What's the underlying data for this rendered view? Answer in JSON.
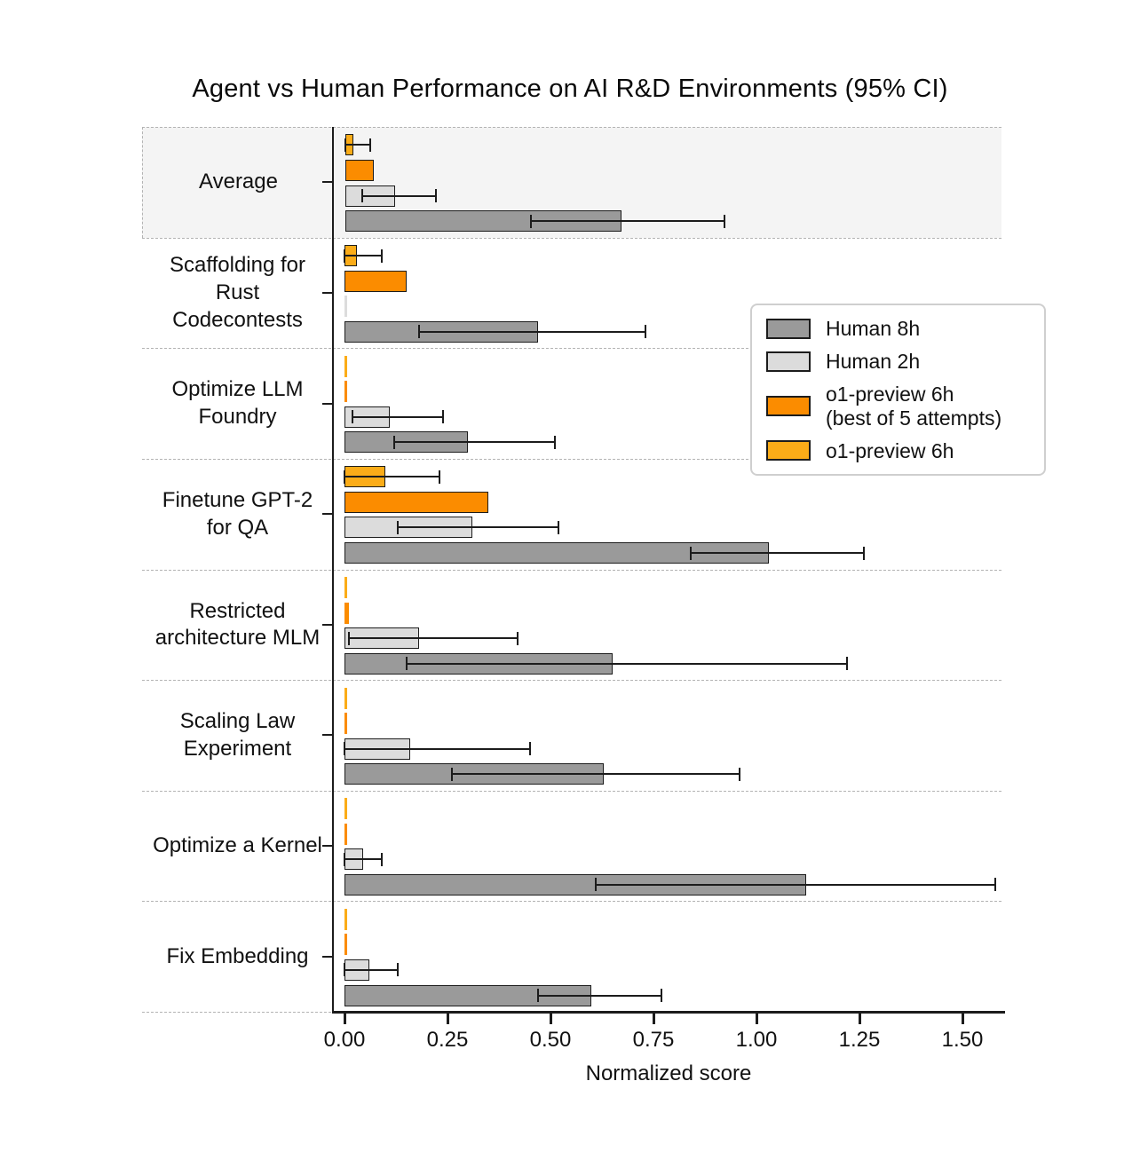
{
  "chart_data": {
    "type": "bar",
    "orientation": "horizontal-grouped",
    "title": "Agent vs Human Performance on AI R&D Environments (95% CI)",
    "xlabel": "Normalized score",
    "xlim": [
      -0.03,
      1.6
    ],
    "grid": "none",
    "x_ticks": [
      {
        "value": 0.0,
        "label": "0.00"
      },
      {
        "value": 0.25,
        "label": "0.25"
      },
      {
        "value": 0.5,
        "label": "0.50"
      },
      {
        "value": 0.75,
        "label": "0.75"
      },
      {
        "value": 1.0,
        "label": "1.00"
      },
      {
        "value": 1.25,
        "label": "1.25"
      },
      {
        "value": 1.5,
        "label": "1.50"
      }
    ],
    "series": [
      {
        "id": "human_8h",
        "label": "Human 8h",
        "color": "#9a9a9a"
      },
      {
        "id": "human_2h",
        "label": "Human 2h",
        "color": "#dcdcdc"
      },
      {
        "id": "o1_best5",
        "label": "o1-preview 6h (best of 5 attempts)",
        "color": "#fb8c00"
      },
      {
        "id": "o1",
        "label": "o1-preview 6h",
        "color": "#fbac18"
      }
    ],
    "bar_draw_order_top_to_bottom": [
      "o1",
      "o1_best5",
      "human_2h",
      "human_8h"
    ],
    "groups": [
      {
        "label": "Average",
        "highlight": true,
        "values": {
          "o1": {
            "value": 0.02,
            "ci": [
              0.0,
              0.06
            ]
          },
          "o1_best5": {
            "value": 0.07,
            "ci": null
          },
          "human_2h": {
            "value": 0.12,
            "ci": [
              0.04,
              0.22
            ]
          },
          "human_8h": {
            "value": 0.67,
            "ci": [
              0.45,
              0.92
            ]
          }
        }
      },
      {
        "label": "Scaffolding for Rust Codecontests",
        "highlight": false,
        "values": {
          "o1": {
            "value": 0.03,
            "ci": [
              0.0,
              0.09
            ]
          },
          "o1_best5": {
            "value": 0.15,
            "ci": null
          },
          "human_2h": {
            "value": 0.0,
            "ci": null
          },
          "human_8h": {
            "value": 0.47,
            "ci": [
              0.18,
              0.73
            ]
          }
        }
      },
      {
        "label": "Optimize LLM Foundry",
        "highlight": false,
        "values": {
          "o1": {
            "value": 0.0,
            "ci": null
          },
          "o1_best5": {
            "value": 0.0,
            "ci": null
          },
          "human_2h": {
            "value": 0.11,
            "ci": [
              0.02,
              0.24
            ]
          },
          "human_8h": {
            "value": 0.3,
            "ci": [
              0.12,
              0.51
            ]
          }
        }
      },
      {
        "label": "Finetune GPT-2 for QA",
        "highlight": false,
        "values": {
          "o1": {
            "value": 0.1,
            "ci": [
              0.0,
              0.23
            ]
          },
          "o1_best5": {
            "value": 0.35,
            "ci": null
          },
          "human_2h": {
            "value": 0.31,
            "ci": [
              0.13,
              0.52
            ]
          },
          "human_8h": {
            "value": 1.03,
            "ci": [
              0.84,
              1.26
            ]
          }
        }
      },
      {
        "label": "Restricted architecture MLM",
        "highlight": false,
        "values": {
          "o1": {
            "value": 0.005,
            "ci": null
          },
          "o1_best5": {
            "value": 0.01,
            "ci": null
          },
          "human_2h": {
            "value": 0.18,
            "ci": [
              0.01,
              0.42
            ]
          },
          "human_8h": {
            "value": 0.65,
            "ci": [
              0.15,
              1.22
            ]
          }
        }
      },
      {
        "label": "Scaling Law Experiment",
        "highlight": false,
        "values": {
          "o1": {
            "value": 0.0,
            "ci": null
          },
          "o1_best5": {
            "value": 0.0,
            "ci": null
          },
          "human_2h": {
            "value": 0.16,
            "ci": [
              0.0,
              0.45
            ]
          },
          "human_8h": {
            "value": 0.63,
            "ci": [
              0.26,
              0.96
            ]
          }
        }
      },
      {
        "label": "Optimize a Kernel",
        "highlight": false,
        "values": {
          "o1": {
            "value": 0.0,
            "ci": null
          },
          "o1_best5": {
            "value": 0.0,
            "ci": null
          },
          "human_2h": {
            "value": 0.045,
            "ci": [
              0.0,
              0.09
            ]
          },
          "human_8h": {
            "value": 1.12,
            "ci": [
              0.61,
              1.58
            ]
          }
        }
      },
      {
        "label": "Fix Embedding",
        "highlight": false,
        "values": {
          "o1": {
            "value": 0.0,
            "ci": null
          },
          "o1_best5": {
            "value": 0.0,
            "ci": null
          },
          "human_2h": {
            "value": 0.06,
            "ci": [
              0.0,
              0.13
            ]
          },
          "human_8h": {
            "value": 0.6,
            "ci": [
              0.47,
              0.77
            ]
          }
        }
      }
    ],
    "legend": {
      "position": "upper-right",
      "items": [
        {
          "swatch": "human_8h",
          "lines": [
            "Human 8h"
          ]
        },
        {
          "swatch": "human_2h",
          "lines": [
            "Human 2h"
          ]
        },
        {
          "swatch": "o1_best5",
          "lines": [
            "o1-preview 6h",
            "(best of 5 attempts)"
          ]
        },
        {
          "swatch": "o1",
          "lines": [
            "o1-preview 6h"
          ]
        }
      ]
    },
    "colors": {
      "bar_edge": "#1c1c1c",
      "error_bar": "#1c1c1c",
      "highlight_band_bg": "#f4f4f4",
      "separator": "#b3b3b3"
    }
  }
}
